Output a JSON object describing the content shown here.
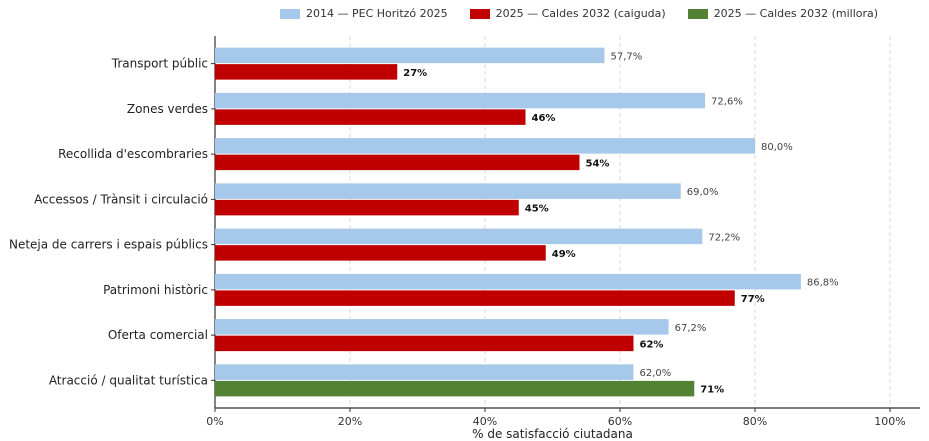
{
  "chart_data": {
    "type": "bar",
    "orientation": "horizontal",
    "categories": [
      "Transport públic",
      "Zones verdes",
      "Recollida d'escombraries",
      "Accessos / Trànsit i circulació",
      "Neteja de carrers i espais públics",
      "Patrimoni històric",
      "Oferta comercial",
      "Atracció / qualitat turística"
    ],
    "series": [
      {
        "name": "2014 — PEC Horitzó 2025",
        "color": "#a6c8ea",
        "values": [
          57.7,
          72.6,
          80.0,
          69.0,
          72.2,
          86.8,
          67.2,
          62.0
        ],
        "labels": [
          "57,7%",
          "72,6%",
          "80,0%",
          "69,0%",
          "72,2%",
          "86,8%",
          "67,2%",
          "62,0%"
        ]
      },
      {
        "name": "2025 — Caldes 2032 (caiguda)",
        "color": "#c00000",
        "values": [
          27,
          46,
          54,
          45,
          49,
          77,
          62,
          null
        ],
        "labels": [
          "27%",
          "46%",
          "54%",
          "45%",
          "49%",
          "77%",
          "62%",
          ""
        ]
      },
      {
        "name": "2025 — Caldes 2032 (millora)",
        "color": "#548235",
        "values": [
          null,
          null,
          null,
          null,
          null,
          null,
          null,
          71
        ],
        "labels": [
          "",
          "",
          "",
          "",
          "",
          "",
          "",
          "71%"
        ]
      }
    ],
    "xlabel": "% de satisfacció ciutadana",
    "xlim": [
      0,
      100
    ],
    "xticks": [
      0,
      20,
      40,
      60,
      80,
      100
    ],
    "xtick_labels": [
      "0%",
      "20%",
      "40%",
      "60%",
      "80%",
      "100%"
    ],
    "grid": "vertical dashed",
    "legend_position": "top"
  }
}
